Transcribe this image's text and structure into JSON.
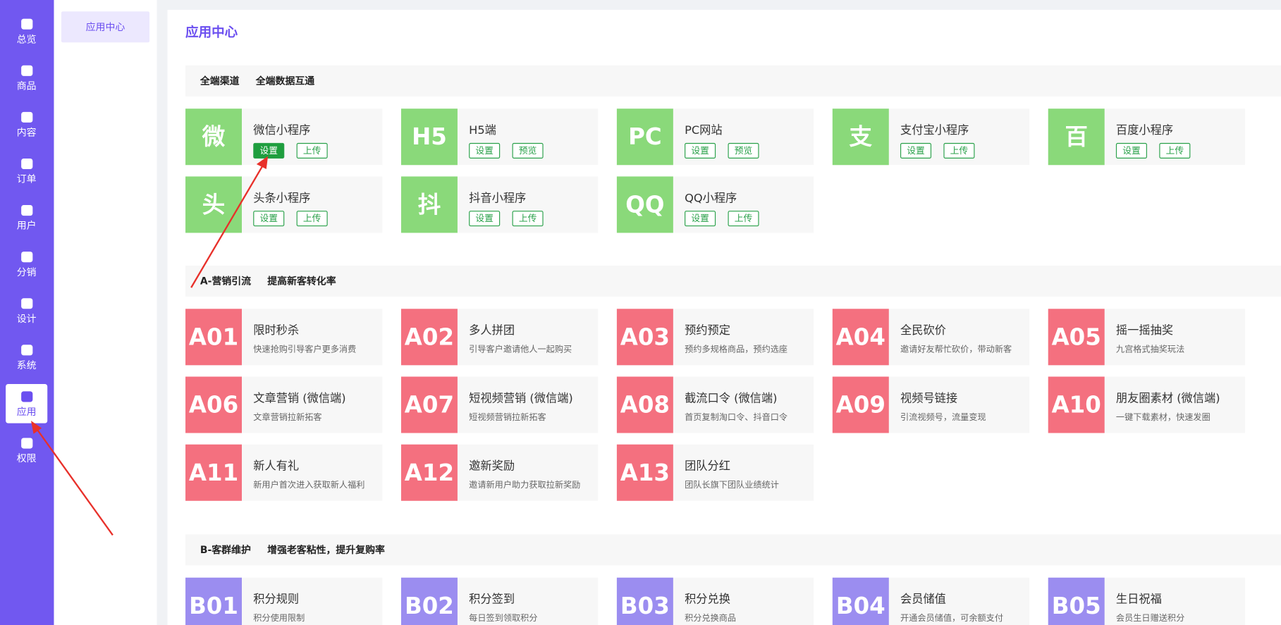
{
  "sidebar": [
    "总览",
    "商品",
    "内容",
    "订单",
    "用户",
    "分销",
    "设计",
    "系统",
    "应用",
    "权限"
  ],
  "active_nav": 8,
  "submenu": "应用中心",
  "page_title": "应用中心",
  "sections": [
    {
      "title": "全端渠道",
      "subtitle": "全端数据互通",
      "color": "#8ad97a",
      "items": [
        {
          "icon": "微",
          "name": "微信小程序",
          "buttons": [
            "设置",
            "上传"
          ]
        },
        {
          "icon": "H5",
          "name": "H5端",
          "buttons": [
            "设置",
            "预览"
          ]
        },
        {
          "icon": "PC",
          "name": "PC网站",
          "buttons": [
            "设置",
            "预览"
          ]
        },
        {
          "icon": "支",
          "name": "支付宝小程序",
          "buttons": [
            "设置",
            "上传"
          ]
        },
        {
          "icon": "百",
          "name": "百度小程序",
          "buttons": [
            "设置",
            "上传"
          ]
        },
        {
          "icon": "头",
          "name": "头条小程序",
          "buttons": [
            "设置",
            "上传"
          ]
        },
        {
          "icon": "抖",
          "name": "抖音小程序",
          "buttons": [
            "设置",
            "上传"
          ]
        },
        {
          "icon": "QQ",
          "name": "QQ小程序",
          "buttons": [
            "设置",
            "上传"
          ]
        }
      ]
    },
    {
      "title": "A-营销引流",
      "subtitle": "提高新客转化率",
      "color": "#f4707f",
      "items": [
        {
          "icon": "A01",
          "name": "限时秒杀",
          "desc": "快速抢购引导客户更多消费"
        },
        {
          "icon": "A02",
          "name": "多人拼团",
          "desc": "引导客户邀请他人一起购买"
        },
        {
          "icon": "A03",
          "name": "预约预定",
          "desc": "预约多规格商品，预约选座"
        },
        {
          "icon": "A04",
          "name": "全民砍价",
          "desc": "邀请好友帮忙砍价，带动新客"
        },
        {
          "icon": "A05",
          "name": "摇一摇抽奖",
          "desc": "九宫格式抽奖玩法"
        },
        {
          "icon": "A06",
          "name": "文章营销 (微信端)",
          "desc": "文章营销拉新拓客"
        },
        {
          "icon": "A07",
          "name": "短视频营销 (微信端)",
          "desc": "短视频营销拉新拓客"
        },
        {
          "icon": "A08",
          "name": "截流口令 (微信端)",
          "desc": "首页复制淘口令、抖音口令"
        },
        {
          "icon": "A09",
          "name": "视频号链接",
          "desc": "引流视频号，流量变现"
        },
        {
          "icon": "A10",
          "name": "朋友圈素材 (微信端)",
          "desc": "一键下载素材，快速发圈"
        },
        {
          "icon": "A11",
          "name": "新人有礼",
          "desc": "新用户首次进入获取新人福利"
        },
        {
          "icon": "A12",
          "name": "邀新奖励",
          "desc": "邀请新用户助力获取拉新奖励"
        },
        {
          "icon": "A13",
          "name": "团队分红",
          "desc": "团队长旗下团队业绩统计"
        }
      ]
    },
    {
      "title": "B-客群维护",
      "subtitle": "增强老客粘性，提升复购率",
      "color": "#9b8df0",
      "items": [
        {
          "icon": "B01",
          "name": "积分规则",
          "desc": "积分使用限制"
        },
        {
          "icon": "B02",
          "name": "积分签到",
          "desc": "每日签到领取积分"
        },
        {
          "icon": "B03",
          "name": "积分兑换",
          "desc": "积分兑换商品"
        },
        {
          "icon": "B04",
          "name": "会员储值",
          "desc": "开通会员储值，可余额支付"
        },
        {
          "icon": "B05",
          "name": "生日祝福",
          "desc": "会员生日赠送积分"
        }
      ]
    }
  ]
}
